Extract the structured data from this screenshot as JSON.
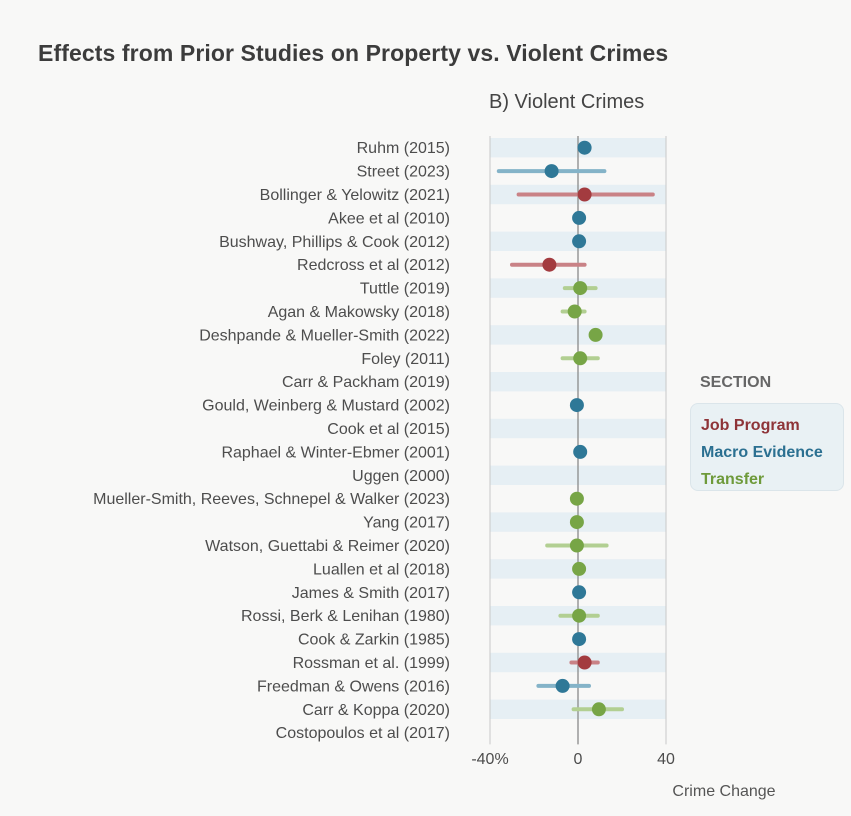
{
  "chart_data": {
    "type": "forest",
    "title": "Effects from Prior Studies on Property vs. Violent Crimes",
    "panel_title": "B) Violent Crimes",
    "xlabel": "Crime Change",
    "xlim": [
      -40,
      40
    ],
    "xticks": [
      {
        "value": -40,
        "label": "-40%"
      },
      {
        "value": 0,
        "label": "0"
      },
      {
        "value": 40,
        "label": "40"
      }
    ],
    "legend": {
      "title": "SECTION",
      "entries": [
        {
          "name": "Job Program",
          "color": "#8e3438"
        },
        {
          "name": "Macro Evidence",
          "color": "#2b7091"
        },
        {
          "name": "Transfer",
          "color": "#6e9a3a"
        }
      ]
    },
    "colors": {
      "Job Program": {
        "point": "#a33b3f",
        "ci": "#c98286"
      },
      "Macro Evidence": {
        "point": "#2f7897",
        "ci": "#84b3c8"
      },
      "Transfer": {
        "point": "#77a546",
        "ci": "#b2cf92"
      }
    },
    "studies": [
      {
        "label": "Ruhm (2015)",
        "section": "Macro Evidence",
        "estimate": 3,
        "ci": null
      },
      {
        "label": "Street (2023)",
        "section": "Macro Evidence",
        "estimate": -12,
        "ci": [
          -36,
          12
        ]
      },
      {
        "label": "Bollinger & Yelowitz (2021)",
        "section": "Job Program",
        "estimate": 3,
        "ci": [
          -27,
          34
        ]
      },
      {
        "label": "Akee et al (2010)",
        "section": "Macro Evidence",
        "estimate": 0.5,
        "ci": null
      },
      {
        "label": "Bushway, Phillips & Cook (2012)",
        "section": "Macro Evidence",
        "estimate": 0.5,
        "ci": null
      },
      {
        "label": "Redcross et al (2012)",
        "section": "Job Program",
        "estimate": -13,
        "ci": [
          -30,
          3
        ]
      },
      {
        "label": "Tuttle (2019)",
        "section": "Transfer",
        "estimate": 1,
        "ci": [
          -6,
          8
        ]
      },
      {
        "label": "Agan & Makowsky (2018)",
        "section": "Transfer",
        "estimate": -1.5,
        "ci": [
          -7,
          3
        ]
      },
      {
        "label": "Deshpande & Mueller-Smith (2022)",
        "section": "Transfer",
        "estimate": 8,
        "ci": null
      },
      {
        "label": "Foley (2011)",
        "section": "Transfer",
        "estimate": 1,
        "ci": [
          -7,
          9
        ]
      },
      {
        "label": "Carr & Packham (2019)",
        "section": "Transfer",
        "estimate": null,
        "ci": null
      },
      {
        "label": "Gould, Weinberg & Mustard (2002)",
        "section": "Macro Evidence",
        "estimate": -0.5,
        "ci": null
      },
      {
        "label": "Cook et al (2015)",
        "section": "Transfer",
        "estimate": null,
        "ci": null
      },
      {
        "label": "Raphael & Winter-Ebmer (2001)",
        "section": "Macro Evidence",
        "estimate": 1,
        "ci": null
      },
      {
        "label": "Uggen (2000)",
        "section": "Job Program",
        "estimate": null,
        "ci": null
      },
      {
        "label": "Mueller-Smith, Reeves, Schnepel & Walker (2023)",
        "section": "Transfer",
        "estimate": -0.5,
        "ci": null
      },
      {
        "label": "Yang (2017)",
        "section": "Transfer",
        "estimate": -0.5,
        "ci": null
      },
      {
        "label": "Watson, Guettabi & Reimer (2020)",
        "section": "Transfer",
        "estimate": -0.5,
        "ci": [
          -14,
          13
        ]
      },
      {
        "label": "Luallen et al (2018)",
        "section": "Transfer",
        "estimate": 0.5,
        "ci": null
      },
      {
        "label": "James & Smith (2017)",
        "section": "Macro Evidence",
        "estimate": 0.5,
        "ci": null
      },
      {
        "label": "Rossi, Berk & Lenihan (1980)",
        "section": "Transfer",
        "estimate": 0.5,
        "ci": [
          -8,
          9
        ]
      },
      {
        "label": "Cook & Zarkin (1985)",
        "section": "Macro Evidence",
        "estimate": 0.5,
        "ci": null
      },
      {
        "label": "Rossman et al. (1999)",
        "section": "Job Program",
        "estimate": 3,
        "ci": [
          -3,
          9
        ]
      },
      {
        "label": "Freedman & Owens (2016)",
        "section": "Macro Evidence",
        "estimate": -7,
        "ci": [
          -18,
          5
        ]
      },
      {
        "label": "Carr & Koppa (2020)",
        "section": "Transfer",
        "estimate": 9.5,
        "ci": [
          -2,
          20
        ]
      },
      {
        "label": "Costopoulos et al (2017)",
        "section": "Transfer",
        "estimate": null,
        "ci": null
      }
    ]
  }
}
